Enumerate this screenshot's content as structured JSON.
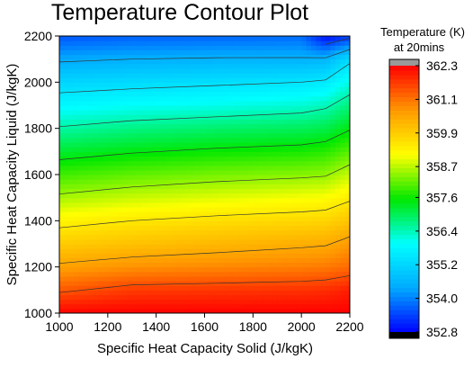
{
  "chart_data": {
    "type": "heatmap",
    "title": "Temperature Contour Plot",
    "xlabel": "Specific Heat Capacity Solid (J/kgK)",
    "ylabel": "Specific Heat Capacity Liquid (J/kgK)",
    "xlim": [
      1000,
      2200
    ],
    "ylim": [
      1000,
      2200
    ],
    "x_ticks": [
      1000,
      1200,
      1400,
      1600,
      1800,
      2000,
      2200
    ],
    "y_ticks": [
      1000,
      1200,
      1400,
      1600,
      1800,
      2000,
      2200
    ],
    "x": [
      1000,
      1300,
      1650,
      2000,
      2100,
      2200
    ],
    "y": [
      1000,
      1100,
      1200,
      1300,
      1400,
      1500,
      1600,
      1700,
      1800,
      1900,
      2000,
      2100,
      2200
    ],
    "z": [
      [
        362.3,
        362.3,
        362.3,
        362.3,
        362.3,
        362.3
      ],
      [
        361.4,
        361.7,
        361.75,
        361.8,
        361.85,
        362.0
      ],
      [
        360.6,
        360.8,
        360.9,
        361.0,
        361.05,
        361.2
      ],
      [
        359.95,
        360.1,
        360.25,
        360.4,
        360.45,
        360.7
      ],
      [
        359.3,
        359.5,
        359.65,
        359.75,
        359.8,
        360.05
      ],
      [
        358.6,
        358.8,
        358.95,
        359.1,
        359.15,
        359.4
      ],
      [
        357.95,
        358.15,
        358.3,
        358.4,
        358.45,
        358.8
      ],
      [
        357.25,
        357.45,
        357.6,
        357.7,
        357.8,
        358.1
      ],
      [
        356.55,
        356.75,
        356.9,
        357.0,
        357.1,
        357.45
      ],
      [
        355.85,
        356.0,
        356.1,
        356.25,
        356.4,
        356.8
      ],
      [
        355.2,
        355.3,
        355.4,
        355.5,
        355.6,
        356.15
      ],
      [
        354.4,
        354.5,
        354.55,
        354.55,
        354.6,
        355.35
      ],
      [
        353.6,
        353.7,
        353.75,
        353.8,
        352.9,
        353.3
      ]
    ],
    "contour_levels": [
      353.5,
      354.5,
      355.5,
      356.5,
      357.5,
      358.5,
      359.5,
      360.5,
      361.5
    ],
    "colorbar": {
      "title_line1": "Temperature (K)",
      "title_line2": "at 20mins",
      "min": 352.8,
      "max": 362.3,
      "tick_values": [
        352.8,
        354.0,
        355.2,
        356.4,
        357.6,
        358.7,
        359.9,
        361.1,
        362.3
      ],
      "tick_labels": [
        "352.8",
        "354.0",
        "355.2",
        "356.4",
        "357.6",
        "358.7",
        "359.9",
        "361.1",
        "362.3"
      ],
      "over_color": "#999999",
      "under_color": "#000000"
    },
    "colorscale": [
      "#0000ff",
      "#00aaff",
      "#00ffff",
      "#00e800",
      "#ffff00",
      "#ff9900",
      "#ff0000"
    ],
    "grid": false,
    "legend": "colorbar-right"
  }
}
